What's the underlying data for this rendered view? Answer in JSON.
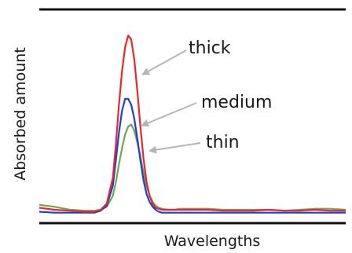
{
  "chart_data": {
    "type": "line",
    "title": "",
    "xlabel": "Wavelengths",
    "ylabel": "Absorbed amount",
    "axis_numbers_shown": false,
    "xlim": [
      0,
      100
    ],
    "ylim": [
      0,
      100
    ],
    "x": [
      0,
      5,
      10,
      15,
      18,
      20,
      22,
      24,
      25,
      26,
      27,
      28,
      29,
      30,
      31,
      32,
      33,
      34,
      35,
      36,
      37,
      38,
      39,
      40,
      42,
      44,
      46,
      48,
      50,
      55,
      60,
      65,
      70,
      75,
      80,
      85,
      90,
      95,
      100
    ],
    "series": [
      {
        "name": "thick",
        "color": "#e8262b",
        "values": [
          3,
          2,
          1.5,
          1,
          1,
          2,
          5,
          18,
          35,
          55,
          72,
          84,
          90,
          88,
          78,
          62,
          44,
          28,
          16,
          9,
          5,
          3,
          2.5,
          2,
          2,
          2,
          2,
          2,
          2,
          2,
          1.5,
          1.5,
          1.5,
          2,
          1.5,
          1.5,
          2,
          1.5,
          1.5
        ]
      },
      {
        "name": "medium",
        "color": "#1f3fd1",
        "values": [
          1,
          0.5,
          0.5,
          0.5,
          0.5,
          1.5,
          4,
          14,
          27,
          41,
          52,
          58,
          58,
          55,
          48,
          38,
          27,
          17,
          10,
          6,
          3.5,
          2,
          1,
          0.5,
          0.5,
          0.5,
          0.5,
          0.5,
          0.5,
          0.5,
          0.5,
          0.5,
          0.5,
          0.5,
          0.5,
          0.5,
          0.5,
          0.5,
          0.5
        ]
      },
      {
        "name": "thin",
        "color": "#6ba84f",
        "values": [
          4.5,
          3.5,
          2,
          1.5,
          1.5,
          2,
          3.5,
          9,
          16,
          25,
          33,
          40,
          44,
          45,
          42,
          36,
          29,
          21,
          14,
          9,
          6,
          4,
          3,
          2.5,
          2,
          2,
          2.5,
          2.5,
          2.5,
          2.5,
          2,
          2,
          2,
          2,
          1.5,
          2,
          2.5,
          2.5,
          2
        ]
      }
    ],
    "annotations": [
      {
        "text": "thick",
        "series": "thick",
        "arrow_color": "#b5b5b5"
      },
      {
        "text": "medium",
        "series": "medium",
        "arrow_color": "#b5b5b5"
      },
      {
        "text": "thin",
        "series": "thin",
        "arrow_color": "#b5b5b5"
      }
    ],
    "grid": false,
    "legend": "none"
  }
}
